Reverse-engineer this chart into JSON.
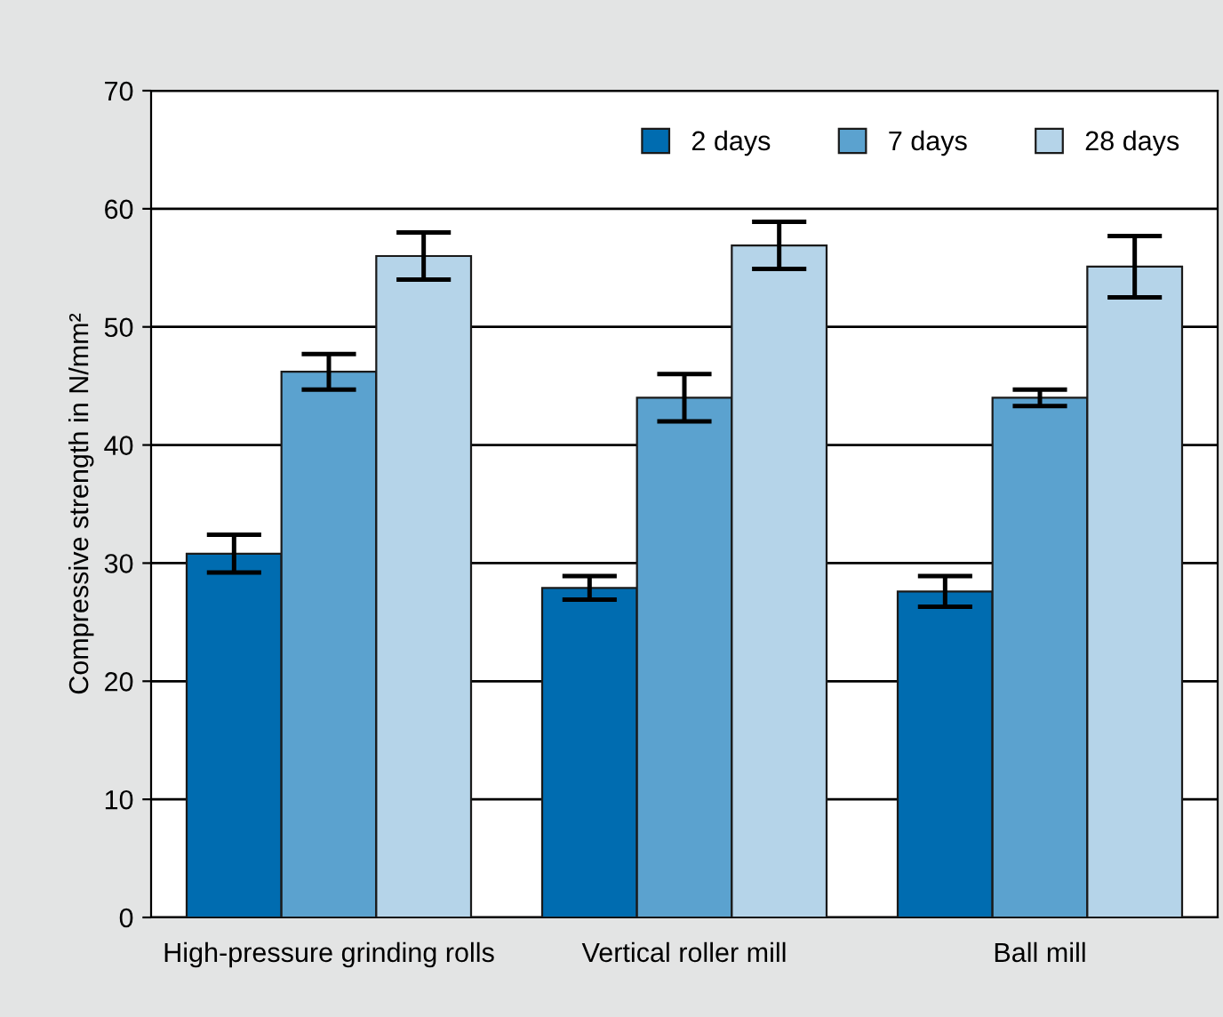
{
  "chart_data": {
    "type": "bar",
    "ylabel": "Compressive strength in N/mm²",
    "categories": [
      "High-pressure grinding rolls",
      "Vertical roller mill",
      "Ball mill"
    ],
    "series": [
      {
        "name": "2 days",
        "color": "#006cb0",
        "values": [
          30.8,
          27.9,
          27.6
        ],
        "errors": [
          1.6,
          1.0,
          1.3
        ]
      },
      {
        "name": "7 days",
        "color": "#5ba2cf",
        "values": [
          46.2,
          44.0,
          44.0
        ],
        "errors": [
          1.5,
          2.0,
          0.7
        ]
      },
      {
        "name": "28 days",
        "color": "#b5d4e9",
        "values": [
          56.0,
          56.9,
          55.1
        ],
        "errors": [
          2.0,
          2.0,
          2.6
        ]
      }
    ],
    "ylim": [
      0,
      70
    ],
    "yticks": [
      0,
      10,
      20,
      30,
      40,
      50,
      60,
      70
    ],
    "grid": "y",
    "legend": "top right"
  }
}
